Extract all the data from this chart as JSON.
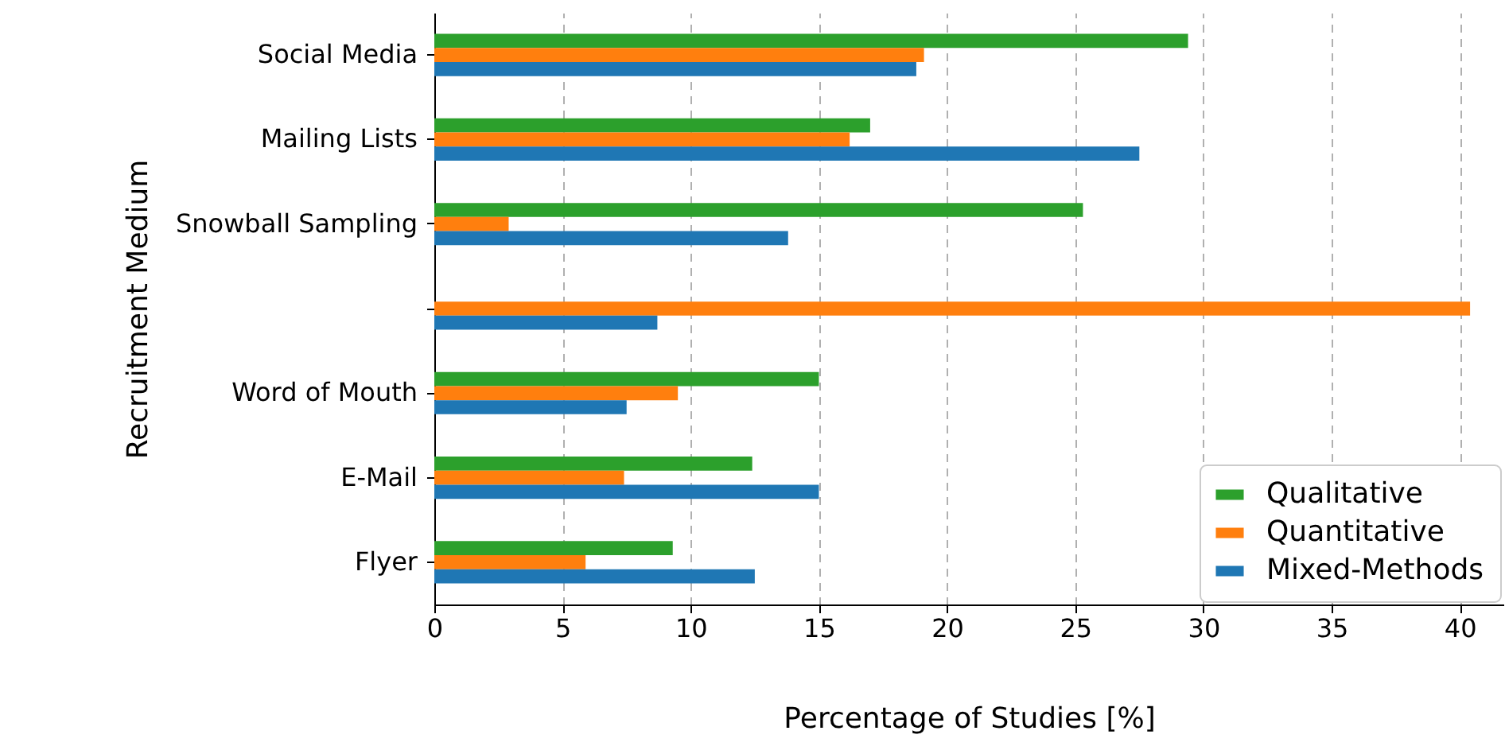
{
  "chart_data": {
    "type": "bar",
    "orientation": "horizontal",
    "xlabel": "Percentage of Studies [%]",
    "ylabel": "Recruitment Medium",
    "categories": [
      "Social Media",
      "Mailing Lists",
      "Snowball Sampling",
      null,
      "Word of Mouth",
      "E-Mail",
      "Flyer"
    ],
    "series": [
      {
        "name": "Qualitative",
        "color": "#2ca02c",
        "values": [
          29.4,
          17.0,
          25.3,
          null,
          15.0,
          12.4,
          9.3
        ]
      },
      {
        "name": "Quantitative",
        "color": "#ff7f0e",
        "values": [
          19.1,
          16.2,
          2.9,
          40.4,
          9.5,
          7.4,
          5.9
        ]
      },
      {
        "name": "Mixed-Methods",
        "color": "#1f77b4",
        "values": [
          18.8,
          27.5,
          13.8,
          8.7,
          7.5,
          15.0,
          12.5
        ]
      }
    ],
    "xlim": [
      0,
      41.7
    ],
    "xticks": [
      0,
      5,
      10,
      15,
      20,
      25,
      30,
      35,
      40
    ],
    "grid": "x",
    "legend": "bottom right"
  }
}
